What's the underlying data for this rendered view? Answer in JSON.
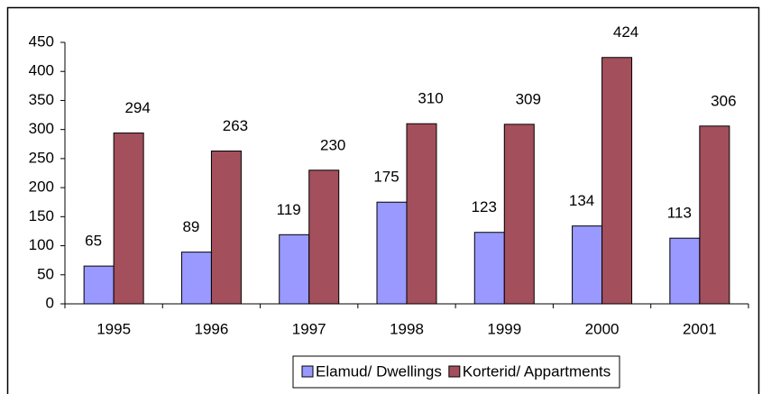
{
  "chart_data": {
    "type": "bar",
    "categories": [
      "1995",
      "1996",
      "1997",
      "1998",
      "1999",
      "2000",
      "2001"
    ],
    "series": [
      {
        "name": "Elamud/ Dwellings",
        "color": "#9999ff",
        "values": [
          65,
          89,
          119,
          175,
          123,
          134,
          113
        ]
      },
      {
        "name": "Korterid/ Appartments",
        "color": "#a34f5c",
        "values": [
          294,
          263,
          230,
          310,
          309,
          424,
          306
        ]
      }
    ],
    "ylim": [
      0,
      450
    ],
    "yticks": [
      0,
      50,
      100,
      150,
      200,
      250,
      300,
      350,
      400,
      450
    ],
    "legend": "bottom"
  }
}
